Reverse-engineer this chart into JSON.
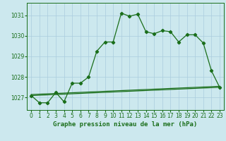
{
  "title": "Graphe pression niveau de la mer (hPa)",
  "background_color": "#cce8ee",
  "grid_color": "#aaccdd",
  "line_color": "#1a6e1a",
  "xlim": [
    -0.5,
    23.5
  ],
  "ylim": [
    1026.4,
    1031.6
  ],
  "yticks": [
    1027,
    1028,
    1029,
    1030,
    1031
  ],
  "xticks": [
    0,
    1,
    2,
    3,
    4,
    5,
    6,
    7,
    8,
    9,
    10,
    11,
    12,
    13,
    14,
    15,
    16,
    17,
    18,
    19,
    20,
    21,
    22,
    23
  ],
  "main_series": [
    1027.1,
    1026.75,
    1026.75,
    1027.25,
    1026.8,
    1027.7,
    1027.7,
    1028.0,
    1029.25,
    1029.7,
    1029.7,
    1031.1,
    1030.95,
    1031.05,
    1030.2,
    1030.1,
    1030.25,
    1030.2,
    1029.7,
    1030.05,
    1030.05,
    1029.65,
    1028.3,
    1027.5
  ],
  "trend1_x": [
    0,
    23
  ],
  "trend1_y": [
    1027.1,
    1027.5
  ],
  "trend2_x": [
    0,
    23
  ],
  "trend2_y": [
    1027.15,
    1027.55
  ]
}
